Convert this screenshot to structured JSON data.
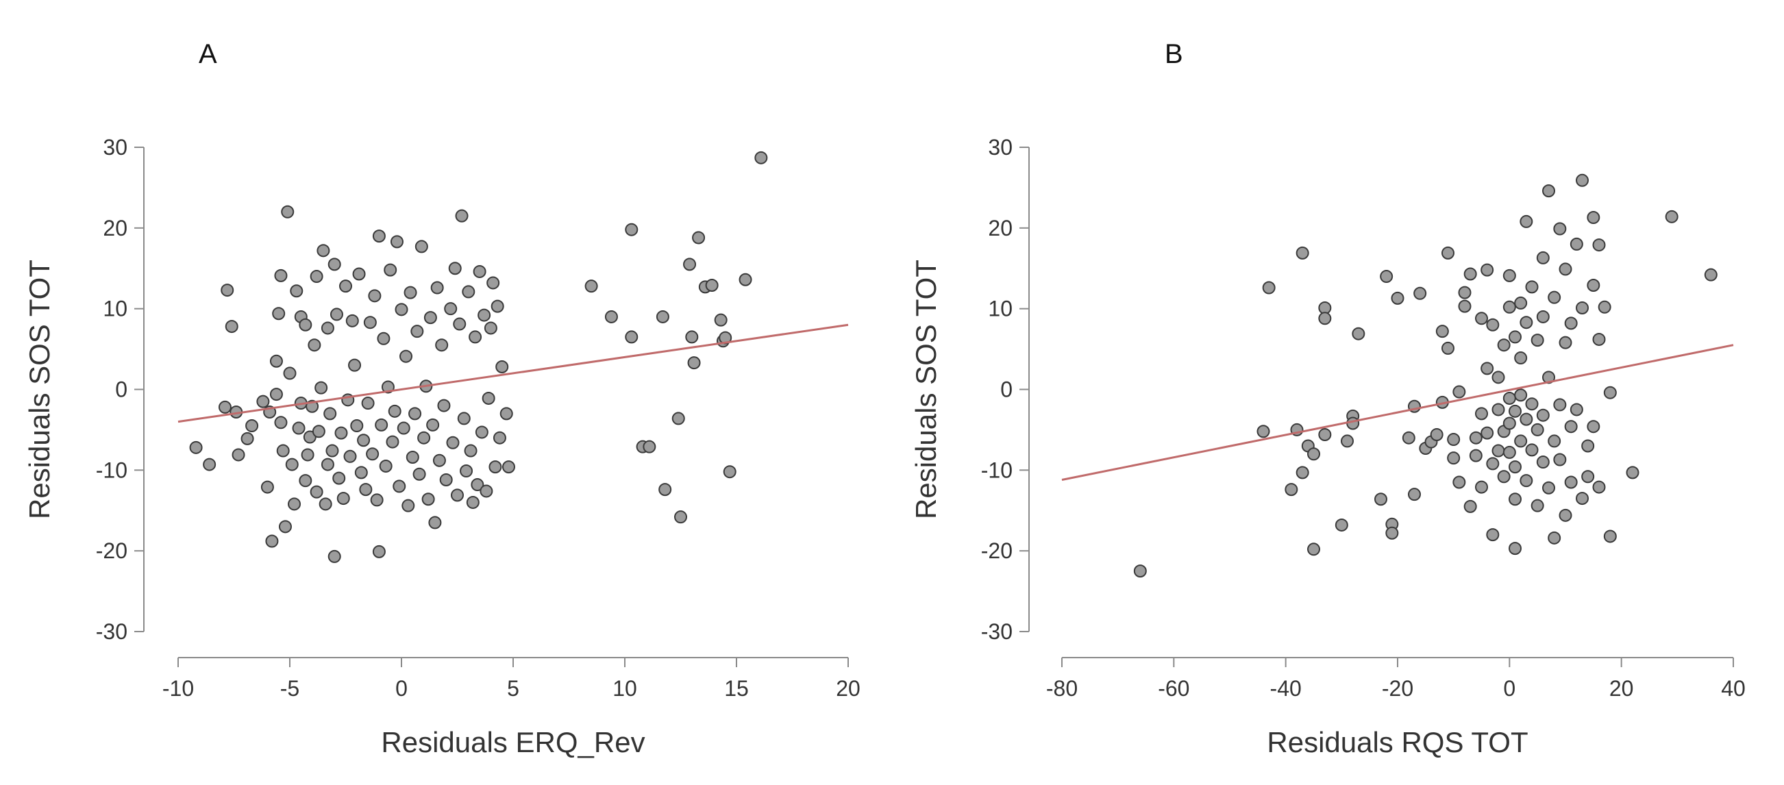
{
  "chart_data": [
    {
      "type": "scatter",
      "panel_label": "A",
      "xlabel": "Residuals ERQ_Rev",
      "ylabel": "Residuals SOS TOT",
      "xlim": [
        -10,
        20
      ],
      "ylim": [
        -30,
        30
      ],
      "xticks": [
        -10,
        -5,
        0,
        5,
        10,
        15,
        20
      ],
      "yticks": [
        -30,
        -20,
        -10,
        0,
        10,
        20,
        30
      ],
      "fit_line": {
        "x": [
          -10,
          20
        ],
        "y": [
          -4,
          8
        ],
        "color": "#c06a6a"
      },
      "points": [
        [
          -9.2,
          -7.2
        ],
        [
          -8.6,
          -9.3
        ],
        [
          -7.9,
          -2.2
        ],
        [
          -7.8,
          12.3
        ],
        [
          -7.6,
          7.8
        ],
        [
          -7.4,
          -2.8
        ],
        [
          -7.3,
          -8.1
        ],
        [
          -6.9,
          -6.1
        ],
        [
          -6.7,
          -4.5
        ],
        [
          -6.2,
          -1.5
        ],
        [
          -6.0,
          -12.1
        ],
        [
          -5.9,
          -2.8
        ],
        [
          -5.8,
          -18.8
        ],
        [
          -5.6,
          -0.6
        ],
        [
          -5.6,
          3.5
        ],
        [
          -5.5,
          9.4
        ],
        [
          -5.4,
          14.1
        ],
        [
          -5.4,
          -4.1
        ],
        [
          -5.3,
          -7.6
        ],
        [
          -5.2,
          -17.0
        ],
        [
          -5.1,
          22.0
        ],
        [
          -5.0,
          2.0
        ],
        [
          -4.9,
          -9.3
        ],
        [
          -4.8,
          -14.2
        ],
        [
          -4.7,
          12.2
        ],
        [
          -4.6,
          -4.8
        ],
        [
          -4.5,
          -1.7
        ],
        [
          -4.5,
          9.0
        ],
        [
          -4.3,
          8.0
        ],
        [
          -4.3,
          -11.3
        ],
        [
          -4.2,
          -8.1
        ],
        [
          -4.1,
          -5.9
        ],
        [
          -4.0,
          -2.1
        ],
        [
          -3.9,
          5.5
        ],
        [
          -3.8,
          -12.7
        ],
        [
          -3.8,
          14.0
        ],
        [
          -3.7,
          -5.2
        ],
        [
          -3.6,
          0.2
        ],
        [
          -3.5,
          17.2
        ],
        [
          -3.4,
          -14.2
        ],
        [
          -3.3,
          -9.3
        ],
        [
          -3.3,
          7.6
        ],
        [
          -3.2,
          -3.0
        ],
        [
          -3.1,
          -7.6
        ],
        [
          -3.0,
          -20.7
        ],
        [
          -3.0,
          15.5
        ],
        [
          -2.9,
          9.3
        ],
        [
          -2.8,
          -11.0
        ],
        [
          -2.7,
          -5.4
        ],
        [
          -2.6,
          -13.5
        ],
        [
          -2.5,
          12.8
        ],
        [
          -2.4,
          -1.3
        ],
        [
          -2.3,
          -8.3
        ],
        [
          -2.2,
          8.5
        ],
        [
          -2.1,
          3.0
        ],
        [
          -2.0,
          -4.5
        ],
        [
          -1.9,
          14.3
        ],
        [
          -1.8,
          -10.3
        ],
        [
          -1.7,
          -6.3
        ],
        [
          -1.6,
          -12.4
        ],
        [
          -1.5,
          -1.7
        ],
        [
          -1.4,
          8.3
        ],
        [
          -1.3,
          -8.0
        ],
        [
          -1.2,
          11.6
        ],
        [
          -1.1,
          -13.7
        ],
        [
          -1.0,
          19.0
        ],
        [
          -1.0,
          -20.1
        ],
        [
          -0.9,
          -4.4
        ],
        [
          -0.8,
          6.3
        ],
        [
          -0.7,
          -9.5
        ],
        [
          -0.6,
          0.3
        ],
        [
          -0.5,
          14.8
        ],
        [
          -0.4,
          -6.5
        ],
        [
          -0.3,
          -2.7
        ],
        [
          -0.2,
          18.3
        ],
        [
          -0.1,
          -12.0
        ],
        [
          0.0,
          9.9
        ],
        [
          0.1,
          -4.8
        ],
        [
          0.2,
          4.1
        ],
        [
          0.3,
          -14.4
        ],
        [
          0.4,
          12.0
        ],
        [
          0.5,
          -8.4
        ],
        [
          0.6,
          -3.0
        ],
        [
          0.7,
          7.2
        ],
        [
          0.8,
          -10.5
        ],
        [
          0.9,
          17.7
        ],
        [
          1.0,
          -6.0
        ],
        [
          1.1,
          0.4
        ],
        [
          1.2,
          -13.6
        ],
        [
          1.3,
          8.9
        ],
        [
          1.4,
          -4.4
        ],
        [
          1.5,
          -16.5
        ],
        [
          1.6,
          12.6
        ],
        [
          1.7,
          -8.8
        ],
        [
          1.8,
          5.5
        ],
        [
          1.9,
          -2.0
        ],
        [
          2.0,
          -11.2
        ],
        [
          2.2,
          10.0
        ],
        [
          2.3,
          -6.6
        ],
        [
          2.4,
          15.0
        ],
        [
          2.5,
          -13.1
        ],
        [
          2.6,
          8.1
        ],
        [
          2.7,
          21.5
        ],
        [
          2.8,
          -3.6
        ],
        [
          2.9,
          -10.1
        ],
        [
          3.0,
          12.1
        ],
        [
          3.1,
          -7.6
        ],
        [
          3.2,
          -14.0
        ],
        [
          3.3,
          6.5
        ],
        [
          3.4,
          -11.8
        ],
        [
          3.5,
          14.6
        ],
        [
          3.6,
          -5.3
        ],
        [
          3.7,
          9.2
        ],
        [
          3.8,
          -12.6
        ],
        [
          3.9,
          -1.1
        ],
        [
          4.0,
          7.6
        ],
        [
          4.1,
          13.2
        ],
        [
          4.2,
          -9.6
        ],
        [
          4.3,
          10.3
        ],
        [
          4.4,
          -6.0
        ],
        [
          4.5,
          2.8
        ],
        [
          4.7,
          -3.0
        ],
        [
          4.8,
          -9.6
        ],
        [
          8.5,
          12.8
        ],
        [
          9.4,
          9.0
        ],
        [
          10.3,
          19.8
        ],
        [
          10.3,
          6.5
        ],
        [
          10.8,
          -7.1
        ],
        [
          11.1,
          -7.1
        ],
        [
          11.7,
          9.0
        ],
        [
          11.8,
          -12.4
        ],
        [
          12.4,
          -3.6
        ],
        [
          12.5,
          -15.8
        ],
        [
          12.9,
          15.5
        ],
        [
          13.0,
          6.5
        ],
        [
          13.1,
          3.3
        ],
        [
          13.3,
          18.8
        ],
        [
          13.6,
          12.7
        ],
        [
          13.9,
          12.9
        ],
        [
          14.3,
          8.6
        ],
        [
          14.4,
          6.0
        ],
        [
          14.5,
          6.4
        ],
        [
          14.7,
          -10.2
        ],
        [
          15.4,
          13.6
        ],
        [
          16.1,
          28.7
        ]
      ]
    },
    {
      "type": "scatter",
      "panel_label": "B",
      "xlabel": "Residuals RQS TOT",
      "ylabel": "Residuals SOS TOT",
      "xlim": [
        -80,
        40
      ],
      "ylim": [
        -30,
        30
      ],
      "xticks": [
        -80,
        -60,
        -40,
        -20,
        0,
        20,
        40
      ],
      "yticks": [
        -30,
        -20,
        -10,
        0,
        10,
        20,
        30
      ],
      "fit_line": {
        "x": [
          -80,
          40
        ],
        "y": [
          -11.2,
          5.5
        ],
        "color": "#c06a6a"
      },
      "points": [
        [
          -66,
          -22.5
        ],
        [
          -44,
          -5.2
        ],
        [
          -43,
          12.6
        ],
        [
          -39,
          -12.4
        ],
        [
          -38,
          -5.0
        ],
        [
          -37,
          16.9
        ],
        [
          -37,
          -10.3
        ],
        [
          -36,
          -7.0
        ],
        [
          -35,
          -19.8
        ],
        [
          -35,
          -8.0
        ],
        [
          -33,
          10.1
        ],
        [
          -33,
          8.8
        ],
        [
          -33,
          -5.6
        ],
        [
          -30,
          -16.8
        ],
        [
          -29,
          -6.4
        ],
        [
          -28,
          -3.3
        ],
        [
          -28,
          -4.2
        ],
        [
          -27,
          6.9
        ],
        [
          -23,
          -13.6
        ],
        [
          -22,
          14.0
        ],
        [
          -21,
          -16.7
        ],
        [
          -21,
          -17.8
        ],
        [
          -20,
          11.3
        ],
        [
          -18,
          -6.0
        ],
        [
          -17,
          -13.0
        ],
        [
          -17,
          -2.1
        ],
        [
          -16,
          11.9
        ],
        [
          -15,
          -7.3
        ],
        [
          -14,
          -6.5
        ],
        [
          -13,
          -5.6
        ],
        [
          -12,
          7.2
        ],
        [
          -12,
          -1.6
        ],
        [
          -11,
          16.9
        ],
        [
          -11,
          5.1
        ],
        [
          -10,
          -8.5
        ],
        [
          -10,
          -6.2
        ],
        [
          -9,
          -11.5
        ],
        [
          -9,
          -0.3
        ],
        [
          -8,
          10.3
        ],
        [
          -8,
          12.0
        ],
        [
          -7,
          -14.5
        ],
        [
          -7,
          14.3
        ],
        [
          -6,
          -8.2
        ],
        [
          -6,
          -6.0
        ],
        [
          -5,
          8.8
        ],
        [
          -5,
          -3.0
        ],
        [
          -5,
          -12.1
        ],
        [
          -4,
          2.6
        ],
        [
          -4,
          -5.4
        ],
        [
          -4,
          14.8
        ],
        [
          -3,
          -18.0
        ],
        [
          -3,
          -9.2
        ],
        [
          -3,
          8.0
        ],
        [
          -2,
          -2.5
        ],
        [
          -2,
          -7.6
        ],
        [
          -2,
          1.5
        ],
        [
          -1,
          -10.8
        ],
        [
          -1,
          5.5
        ],
        [
          -1,
          -5.2
        ],
        [
          0,
          -4.2
        ],
        [
          0,
          -1.1
        ],
        [
          0,
          10.2
        ],
        [
          0,
          -7.8
        ],
        [
          0,
          14.1
        ],
        [
          1,
          -9.6
        ],
        [
          1,
          -2.7
        ],
        [
          1,
          6.5
        ],
        [
          1,
          -13.6
        ],
        [
          1,
          -19.7
        ],
        [
          2,
          10.7
        ],
        [
          2,
          -6.4
        ],
        [
          2,
          -0.7
        ],
        [
          2,
          3.9
        ],
        [
          3,
          -11.3
        ],
        [
          3,
          8.3
        ],
        [
          3,
          -3.7
        ],
        [
          3,
          20.8
        ],
        [
          4,
          -7.5
        ],
        [
          4,
          12.7
        ],
        [
          4,
          -1.8
        ],
        [
          5,
          -14.4
        ],
        [
          5,
          6.1
        ],
        [
          5,
          -5.0
        ],
        [
          6,
          16.3
        ],
        [
          6,
          -9.0
        ],
        [
          6,
          -3.2
        ],
        [
          6,
          9.0
        ],
        [
          7,
          24.6
        ],
        [
          7,
          -12.2
        ],
        [
          7,
          1.5
        ],
        [
          8,
          -6.4
        ],
        [
          8,
          11.4
        ],
        [
          8,
          -18.4
        ],
        [
          9,
          -1.9
        ],
        [
          9,
          19.9
        ],
        [
          9,
          -8.7
        ],
        [
          10,
          5.8
        ],
        [
          10,
          -15.6
        ],
        [
          10,
          14.9
        ],
        [
          11,
          -4.6
        ],
        [
          11,
          -11.5
        ],
        [
          11,
          8.2
        ],
        [
          12,
          18.0
        ],
        [
          12,
          -2.5
        ],
        [
          13,
          25.9
        ],
        [
          13,
          -13.5
        ],
        [
          13,
          10.1
        ],
        [
          14,
          -7.0
        ],
        [
          14,
          -10.8
        ],
        [
          15,
          21.3
        ],
        [
          15,
          12.9
        ],
        [
          15,
          -4.6
        ],
        [
          16,
          6.2
        ],
        [
          16,
          -12.1
        ],
        [
          16,
          17.9
        ],
        [
          17,
          10.2
        ],
        [
          18,
          -18.2
        ],
        [
          18,
          -0.4
        ],
        [
          22,
          -10.3
        ],
        [
          29,
          21.4
        ],
        [
          36,
          14.2
        ]
      ]
    }
  ]
}
